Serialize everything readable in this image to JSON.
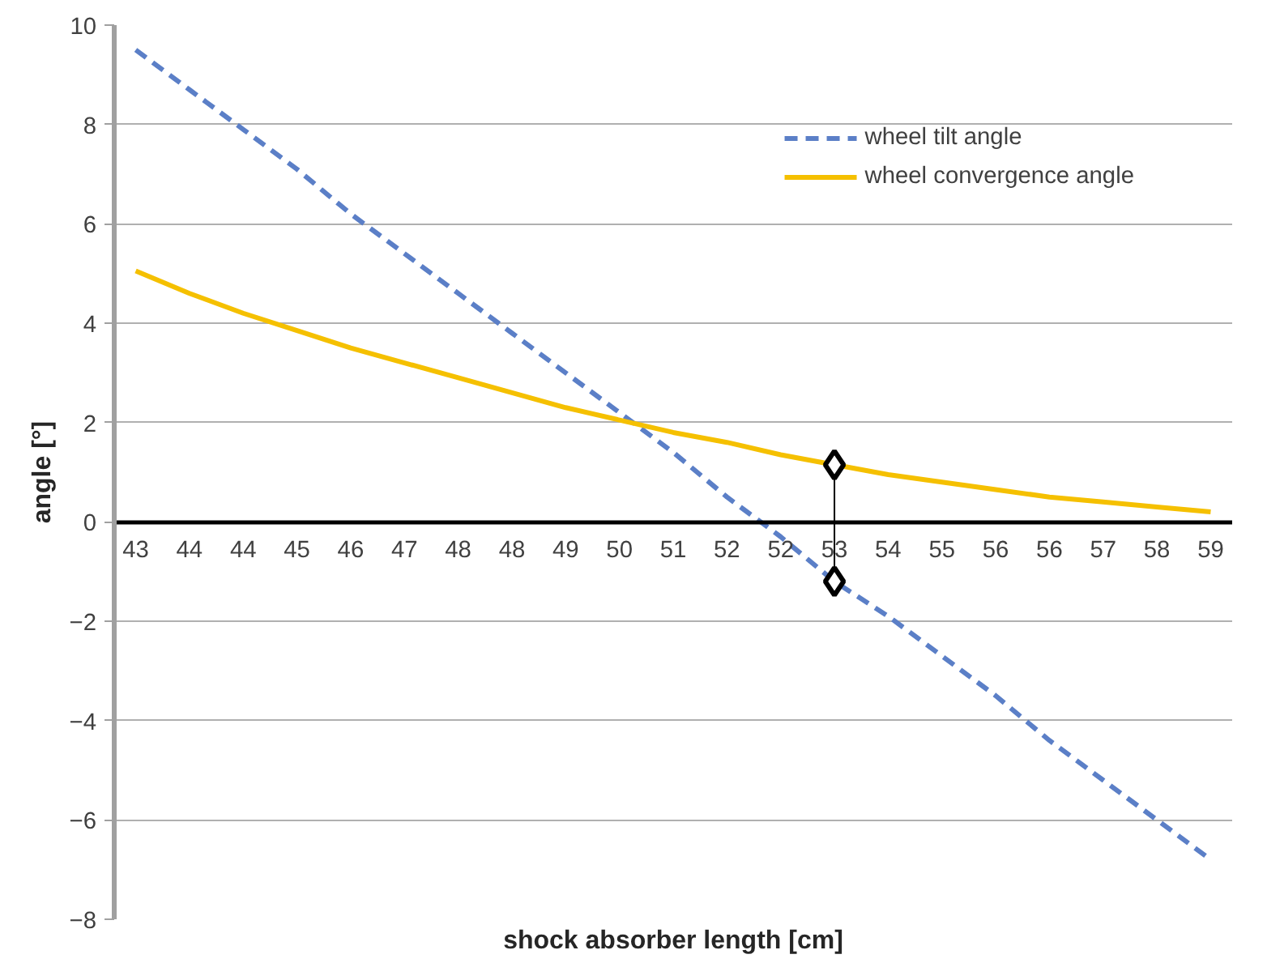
{
  "chart_data": {
    "type": "line",
    "xlabel": "shock absorber length [cm]",
    "ylabel": "angle [°]",
    "categories": [
      "43",
      "44",
      "44",
      "45",
      "46",
      "47",
      "48",
      "48",
      "49",
      "50",
      "51",
      "52",
      "52",
      "53",
      "54",
      "55",
      "56",
      "56",
      "57",
      "58",
      "59"
    ],
    "ylim": [
      -8,
      10
    ],
    "yticks": [
      -8,
      -6,
      -4,
      -2,
      0,
      2,
      4,
      6,
      8,
      10
    ],
    "grid": "y",
    "legend": "top right",
    "series": [
      {
        "name": "wheel tilt angle",
        "color": "#5b7fc7",
        "line_style": "dashed",
        "marker": "none",
        "values": [
          9.5,
          8.7,
          7.9,
          7.1,
          6.2,
          5.4,
          4.6,
          3.8,
          3.0,
          2.2,
          1.4,
          0.5,
          -0.3,
          -1.2,
          -1.9,
          -2.7,
          -3.5,
          -4.4,
          -5.2,
          -6.0,
          -6.8
        ]
      },
      {
        "name": "wheel convergence angle",
        "color": "#f5c000",
        "line_style": "solid",
        "marker": "none",
        "values": [
          5.05,
          4.6,
          4.2,
          3.85,
          3.5,
          3.2,
          2.9,
          2.6,
          2.3,
          2.05,
          1.8,
          1.6,
          1.35,
          1.15,
          0.95,
          0.8,
          0.65,
          0.5,
          0.4,
          0.3,
          0.2
        ]
      },
      {
        "color": "#000000",
        "line_style": "solid",
        "marker": "diamond",
        "x": [
          "53",
          "53"
        ],
        "values": [
          1.15,
          -1.2
        ]
      }
    ]
  }
}
